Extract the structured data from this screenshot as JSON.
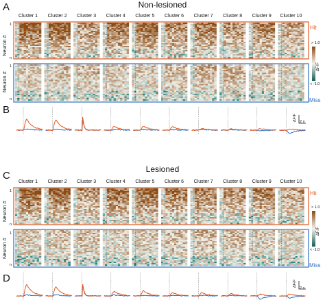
{
  "panel_letters": [
    "A",
    "B",
    "C",
    "D"
  ],
  "sections": [
    {
      "title": "Non-lesioned"
    },
    {
      "title": "Lesioned"
    }
  ],
  "clusters": [
    "Cluster 1",
    "Cluster 2",
    "Cluster 3",
    "Cluster 4",
    "Cluster 5",
    "Cluster 6",
    "Cluster 7",
    "Cluster 8",
    "Cluster 9",
    "Cluster 10"
  ],
  "row_labels": {
    "hit": "Hit",
    "miss": "Miss"
  },
  "y_axis_label": "Neuron #",
  "y_ticks": {
    "top": "1",
    "bottom": "n"
  },
  "colorbar": {
    "top": "> 1.0",
    "bottom": "< -1.0",
    "label": "ΔF/F",
    "top_color": "#8a4a12",
    "mid_color": "#f4f1ea",
    "bottom_color": "#0f5d5a"
  },
  "scale_bar": {
    "y": "ΔF/F",
    "x": "2 s"
  },
  "colors": {
    "hit": "#e2571e",
    "miss": "#2f6fc0"
  },
  "traces": {
    "nonlesioned": {
      "hit_peak": [
        1.0,
        0.9,
        1.3,
        0.35,
        0.35,
        0.3,
        0.15,
        0.12,
        0.15,
        0.1
      ],
      "miss_peak": [
        0.1,
        0.08,
        1.1,
        0.05,
        0.05,
        0.05,
        0.05,
        0.05,
        -0.05,
        -0.3
      ]
    },
    "lesioned": {
      "hit_peak": [
        1.0,
        0.8,
        1.2,
        0.4,
        0.45,
        0.3,
        0.3,
        0.2,
        0.15,
        0.15
      ],
      "miss_peak": [
        0.1,
        0.1,
        1.1,
        0.08,
        0.05,
        0.05,
        0.05,
        0.05,
        -0.3,
        -0.2
      ]
    }
  }
}
